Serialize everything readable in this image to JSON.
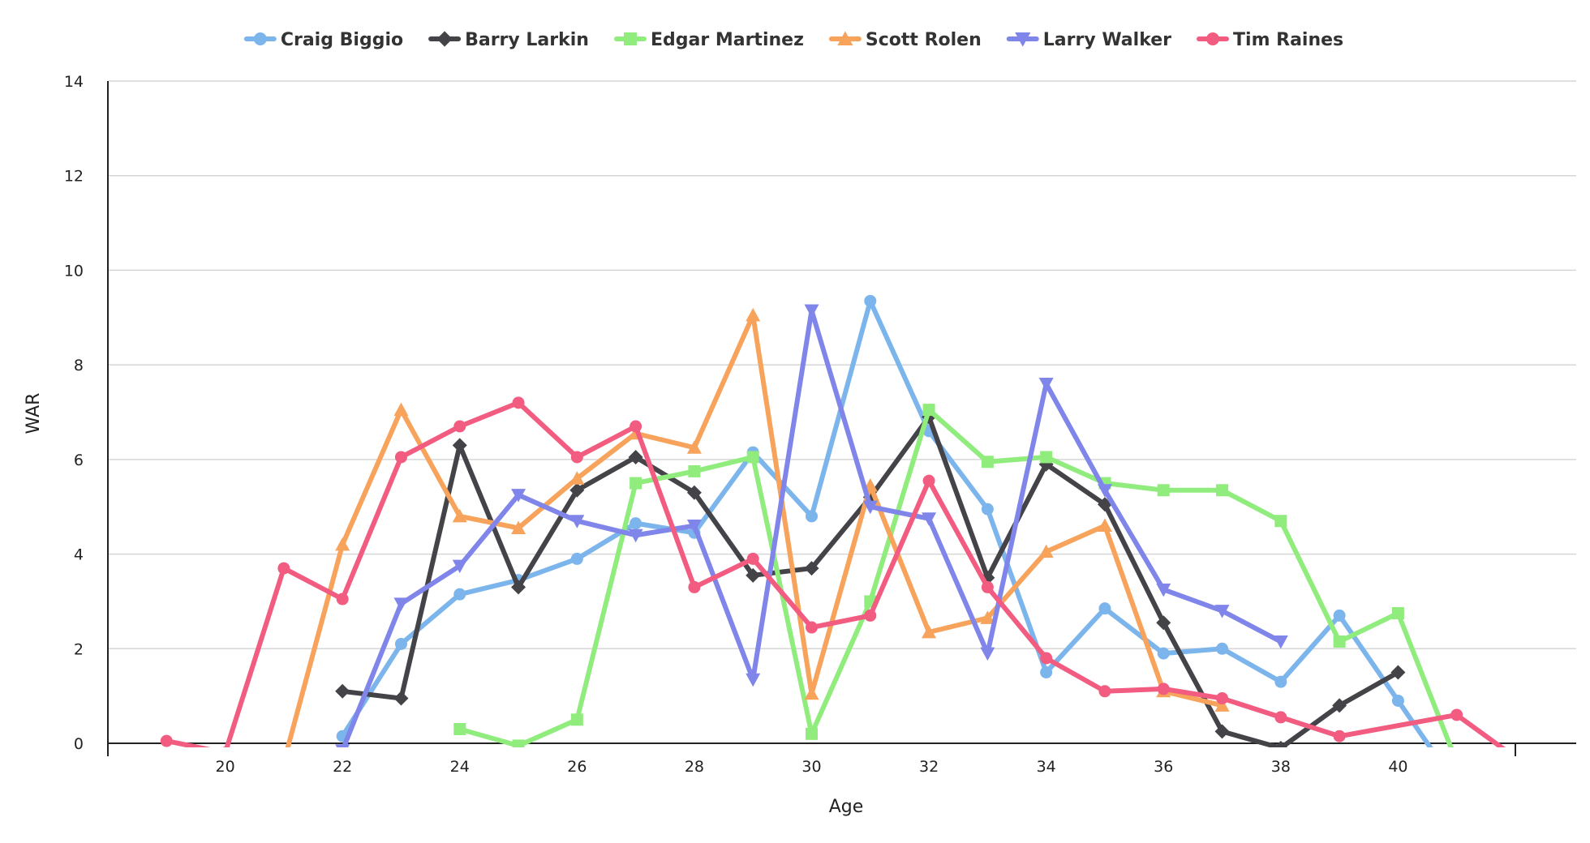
{
  "chart_data": {
    "type": "line",
    "title": "",
    "xlabel": "Age",
    "ylabel": "WAR",
    "xlim": [
      18,
      42
    ],
    "ylim": [
      0,
      14
    ],
    "xticks": [
      20,
      22,
      24,
      26,
      28,
      30,
      32,
      34,
      36,
      38,
      40
    ],
    "yticks": [
      0,
      2,
      4,
      6,
      8,
      10,
      12,
      14
    ],
    "grid": "horizontal",
    "legend": "top-center",
    "series": [
      {
        "name": "Craig Biggio",
        "color": "#7cb5ec",
        "marker": "circle",
        "x": [
          22,
          23,
          24,
          25,
          26,
          27,
          28,
          29,
          30,
          31,
          32,
          33,
          34,
          35,
          36,
          37,
          38,
          39,
          40,
          41
        ],
        "y": [
          0.15,
          2.1,
          3.15,
          3.45,
          3.9,
          4.65,
          4.45,
          6.15,
          4.8,
          9.35,
          6.6,
          4.95,
          1.5,
          2.85,
          1.9,
          2.0,
          1.3,
          2.7,
          0.9,
          -0.9
        ]
      },
      {
        "name": "Barry Larkin",
        "color": "#434348",
        "marker": "diamond",
        "x": [
          22,
          23,
          24,
          25,
          26,
          27,
          28,
          29,
          30,
          31,
          32,
          33,
          34,
          35,
          36,
          37,
          38,
          39,
          40
        ],
        "y": [
          1.1,
          0.95,
          6.3,
          3.3,
          5.35,
          6.05,
          5.3,
          3.55,
          3.7,
          5.2,
          6.9,
          3.5,
          5.9,
          5.05,
          2.55,
          0.25,
          -0.1,
          0.8,
          1.5
        ]
      },
      {
        "name": "Edgar Martinez",
        "color": "#90ed7d",
        "marker": "square",
        "x": [
          24,
          25,
          26,
          27,
          28,
          29,
          30,
          31,
          32,
          33,
          34,
          35,
          36,
          37,
          38,
          39,
          40,
          41
        ],
        "y": [
          0.3,
          -0.05,
          0.5,
          5.5,
          5.75,
          6.05,
          0.2,
          3.0,
          7.05,
          5.95,
          6.05,
          5.5,
          5.35,
          5.35,
          4.7,
          2.15,
          2.75,
          -0.4
        ]
      },
      {
        "name": "Scott Rolen",
        "color": "#f7a35c",
        "marker": "triangle",
        "x": [
          21,
          22,
          23,
          24,
          25,
          26,
          27,
          28,
          29,
          30,
          31,
          32,
          33,
          34,
          35,
          36,
          37
        ],
        "y": [
          -0.4,
          4.2,
          7.05,
          4.8,
          4.55,
          5.6,
          6.55,
          6.25,
          9.05,
          1.05,
          5.45,
          2.35,
          2.65,
          4.05,
          4.6,
          1.1,
          0.8
        ]
      },
      {
        "name": "Larry Walker",
        "color": "#8085e9",
        "marker": "triangle-down",
        "x": [
          22,
          23,
          24,
          25,
          26,
          27,
          28,
          29,
          30,
          31,
          32,
          33,
          34,
          35,
          36,
          37,
          38
        ],
        "y": [
          -0.15,
          2.95,
          3.75,
          5.25,
          4.7,
          4.4,
          4.6,
          1.35,
          9.15,
          5.0,
          4.75,
          1.9,
          7.6,
          5.35,
          3.25,
          2.8,
          2.15
        ]
      },
      {
        "name": "Tim Raines",
        "color": "#f15c80",
        "marker": "circle",
        "x": [
          19,
          20,
          21,
          22,
          23,
          24,
          25,
          26,
          27,
          28,
          29,
          30,
          31,
          32,
          33,
          34,
          35,
          36,
          37,
          38,
          39,
          41,
          42
        ],
        "y": [
          0.05,
          -0.2,
          3.7,
          3.05,
          6.05,
          6.7,
          7.2,
          6.05,
          6.7,
          3.3,
          3.9,
          2.45,
          2.7,
          5.55,
          3.3,
          1.8,
          1.1,
          1.15,
          0.95,
          0.55,
          0.15,
          0.6,
          -0.3
        ]
      }
    ]
  }
}
